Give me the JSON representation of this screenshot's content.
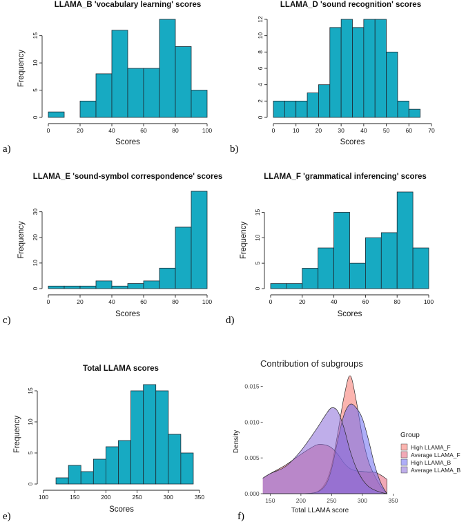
{
  "chart_data": [
    {
      "type": "bar",
      "label": "a)",
      "title": "LLAMA_B 'vocabulary learning' scores",
      "xlabel": "Scores",
      "ylabel": "Frequency",
      "bin_edges": [
        0,
        10,
        20,
        30,
        40,
        50,
        60,
        70,
        80,
        90,
        100
      ],
      "values": [
        1,
        0,
        3,
        8,
        16,
        9,
        9,
        18,
        13,
        5
      ],
      "xlim": [
        0,
        100
      ],
      "ylim": [
        0,
        18
      ],
      "xticks": [
        0,
        20,
        40,
        60,
        80,
        100
      ],
      "yticks": [
        0,
        5,
        10,
        15
      ]
    },
    {
      "type": "bar",
      "label": "b)",
      "title": "LLAMA_D 'sound recognition' scores",
      "xlabel": "Scores",
      "ylabel": "",
      "bin_edges": [
        0,
        5,
        10,
        15,
        20,
        25,
        30,
        35,
        40,
        45,
        50,
        55,
        60,
        65
      ],
      "values": [
        2,
        2,
        2,
        3,
        4,
        11,
        12,
        11,
        12,
        12,
        8,
        2,
        1
      ],
      "xlim": [
        0,
        70
      ],
      "ylim": [
        0,
        12
      ],
      "xticks": [
        0,
        10,
        20,
        30,
        40,
        50,
        60,
        70
      ],
      "yticks": [
        0,
        2,
        4,
        6,
        8,
        10,
        12
      ]
    },
    {
      "type": "bar",
      "label": "c)",
      "title": "LLAMA_E 'sound-symbol correspondence' scores",
      "xlabel": "Scores",
      "ylabel": "Frequency",
      "bin_edges": [
        0,
        10,
        20,
        30,
        40,
        50,
        60,
        70,
        80,
        90,
        100
      ],
      "values": [
        1,
        1,
        1,
        3,
        1,
        2,
        3,
        8,
        24,
        38
      ],
      "xlim": [
        0,
        100
      ],
      "ylim": [
        0,
        38
      ],
      "xticks": [
        0,
        20,
        40,
        60,
        80,
        100
      ],
      "yticks": [
        0,
        10,
        20,
        30
      ]
    },
    {
      "type": "bar",
      "label": "d)",
      "title": "LLAMA_F 'grammatical inferencing' scores",
      "xlabel": "Scores",
      "ylabel": "Frequency",
      "bin_edges": [
        0,
        10,
        20,
        30,
        40,
        50,
        60,
        70,
        80,
        90,
        100
      ],
      "values": [
        1,
        1,
        4,
        8,
        15,
        5,
        10,
        11,
        19,
        8
      ],
      "xlim": [
        0,
        100
      ],
      "ylim": [
        0,
        19
      ],
      "xticks": [
        0,
        20,
        40,
        60,
        80,
        100
      ],
      "yticks": [
        0,
        5,
        10,
        15
      ]
    },
    {
      "type": "bar",
      "label": "e)",
      "title": "Total LLAMA scores",
      "xlabel": "Scores",
      "ylabel": "Frequency",
      "bin_edges": [
        120,
        140,
        160,
        180,
        200,
        220,
        240,
        260,
        280,
        300,
        320,
        340
      ],
      "values": [
        1,
        3,
        2,
        4,
        6,
        7,
        15,
        16,
        15,
        8,
        5
      ],
      "xlim": [
        100,
        350
      ],
      "ylim": [
        0,
        16
      ],
      "xticks": [
        100,
        150,
        200,
        250,
        300,
        350
      ],
      "yticks": [
        0,
        5,
        10,
        15
      ]
    },
    {
      "type": "area",
      "label": "f)",
      "title": "Contribution of subgroups",
      "xlabel": "Total LLAMA score",
      "ylabel": "Density",
      "xlim": [
        135,
        345
      ],
      "ylim": [
        0,
        0.0165
      ],
      "xticks": [
        150,
        200,
        250,
        300,
        350
      ],
      "yticks": [
        0.0,
        0.005,
        0.01,
        0.015
      ],
      "ytick_labels": [
        "0.000",
        "0.005",
        "0.010",
        "0.015"
      ],
      "legend_title": "Group",
      "legend_position": "right",
      "x": [
        135,
        150,
        175,
        200,
        225,
        240,
        250,
        260,
        270,
        280,
        290,
        300,
        310,
        320,
        330,
        340
      ],
      "series": [
        {
          "name": "High LLAMA_F",
          "color": "#f8766d",
          "values": [
            0.0,
            0.0,
            0.0,
            0.0,
            0.0002,
            0.0015,
            0.004,
            0.0085,
            0.0135,
            0.0165,
            0.013,
            0.008,
            0.0045,
            0.0025,
            0.001,
            0.0
          ]
        },
        {
          "name": "Average LLAMA_F",
          "color": "#e8627a",
          "values": [
            0.002,
            0.0028,
            0.004,
            0.0055,
            0.0068,
            0.0068,
            0.0064,
            0.0055,
            0.0043,
            0.0035,
            0.0032,
            0.0031,
            0.003,
            0.003,
            0.0026,
            0.002
          ]
        },
        {
          "name": "High LLAMA_B",
          "color": "#6b6bf2",
          "values": [
            0.0,
            0.0,
            0.0,
            0.0,
            0.0002,
            0.0012,
            0.0035,
            0.0075,
            0.011,
            0.0125,
            0.012,
            0.0105,
            0.0075,
            0.004,
            0.0015,
            0.0
          ]
        },
        {
          "name": "Average LLAMA_B",
          "color": "#8b6bd8",
          "values": [
            0.002,
            0.0028,
            0.0038,
            0.006,
            0.009,
            0.011,
            0.012,
            0.0115,
            0.0092,
            0.006,
            0.0036,
            0.002,
            0.001,
            0.0005,
            0.0002,
            0.0
          ]
        }
      ]
    }
  ]
}
